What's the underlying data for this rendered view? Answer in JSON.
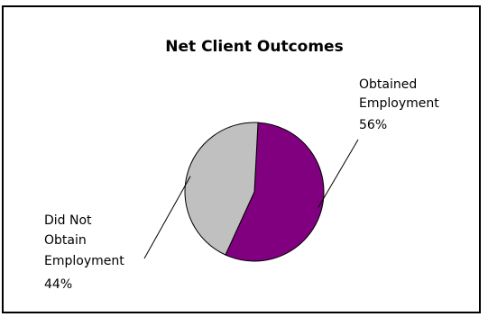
{
  "chart_data": {
    "type": "pie",
    "title": "Net Client Outcomes",
    "slices": [
      {
        "label": [
          "Obtained",
          "Employment"
        ],
        "percent_label": "56%",
        "value": 56,
        "color": "#800080"
      },
      {
        "label": [
          "Did Not",
          "Obtain",
          "Employment"
        ],
        "percent_label": "44%",
        "value": 44,
        "color": "#C0C0C0"
      }
    ],
    "legend": "none",
    "labels": "outside with leader lines"
  }
}
